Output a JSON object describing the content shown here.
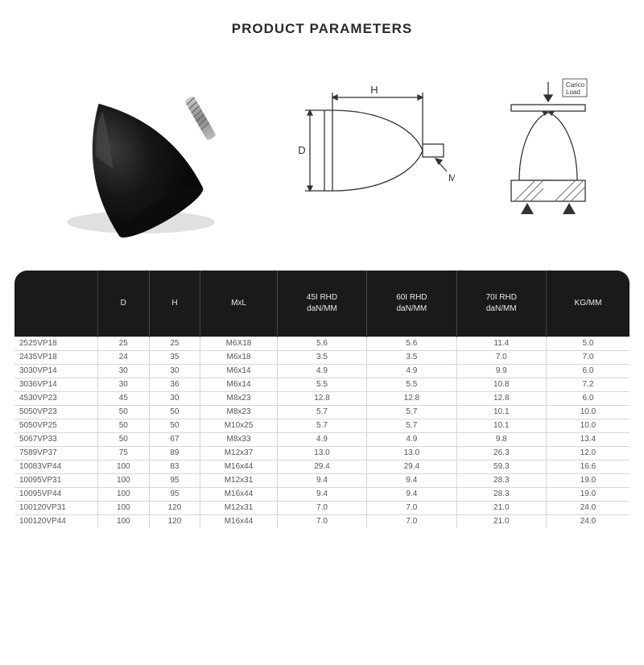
{
  "title": "PRODUCT PARAMETERS",
  "diagram": {
    "labels": {
      "H": "H",
      "D": "D",
      "M": "M",
      "load": "Carico\nLoad"
    },
    "line_color": "#3a3a3a",
    "photo_color": "#141414",
    "thread_color": "#9c9c9c",
    "hatch_color": "#6b6b6b"
  },
  "table": {
    "header_bg": "#1a1a1a",
    "header_fg": "#e8e8e8",
    "grid_color": "#d6d6d6",
    "cell_fg": "#555555",
    "columns": [
      {
        "key": "model",
        "label": ""
      },
      {
        "key": "D",
        "label": "D"
      },
      {
        "key": "H",
        "label": "H"
      },
      {
        "key": "MxL",
        "label": "MxL"
      },
      {
        "key": "r45",
        "label": "45I RHD\ndaN/MM"
      },
      {
        "key": "r60",
        "label": "60I RHD\ndaN/MM"
      },
      {
        "key": "r70",
        "label": "70I RHD\ndaN/MM"
      },
      {
        "key": "kg",
        "label": "KG/MM"
      }
    ],
    "rows": [
      [
        "2525VP18",
        "25",
        "25",
        "M6X18",
        "5.6",
        "5.6",
        "11.4",
        "5.0"
      ],
      [
        "2435VP18",
        "24",
        "35",
        "M6x18",
        "3.5",
        "3.5",
        "7.0",
        "7.0"
      ],
      [
        "3030VP14",
        "30",
        "30",
        "M6x14",
        "4.9",
        "4.9",
        "9.9",
        "6.0"
      ],
      [
        "3036VP14",
        "30",
        "36",
        "M6x14",
        "5.5",
        "5.5",
        "10.8",
        "7.2"
      ],
      [
        "4530VP23",
        "45",
        "30",
        "M8x23",
        "12.8",
        "12.8",
        "12.8",
        "6.0"
      ],
      [
        "5050VP23",
        "50",
        "50",
        "M8x23",
        "5.7",
        "5.7",
        "10.1",
        "10.0"
      ],
      [
        "5050VP25",
        "50",
        "50",
        "M10x25",
        "5.7",
        "5.7",
        "10.1",
        "10.0"
      ],
      [
        "5067VP33",
        "50",
        "67",
        "M8x33",
        "4.9",
        "4.9",
        "9.8",
        "13.4"
      ],
      [
        "7589VP37",
        "75",
        "89",
        "M12x37",
        "13.0",
        "13.0",
        "26.3",
        "12.0"
      ],
      [
        "10083VP44",
        "100",
        "83",
        "M16x44",
        "29.4",
        "29.4",
        "59.3",
        "16.6"
      ],
      [
        "10095VP31",
        "100",
        "95",
        "M12x31",
        "9.4",
        "9.4",
        "28.3",
        "19.0"
      ],
      [
        "10095VP44",
        "100",
        "95",
        "M16x44",
        "9.4",
        "9.4",
        "28.3",
        "19.0"
      ],
      [
        "100120VP31",
        "100",
        "120",
        "M12x31",
        "7.0",
        "7.0",
        "21.0",
        "24.0"
      ],
      [
        "100120VP44",
        "100",
        "120",
        "M16x44",
        "7.0",
        "7.0",
        "21.0",
        "24.0"
      ]
    ]
  }
}
